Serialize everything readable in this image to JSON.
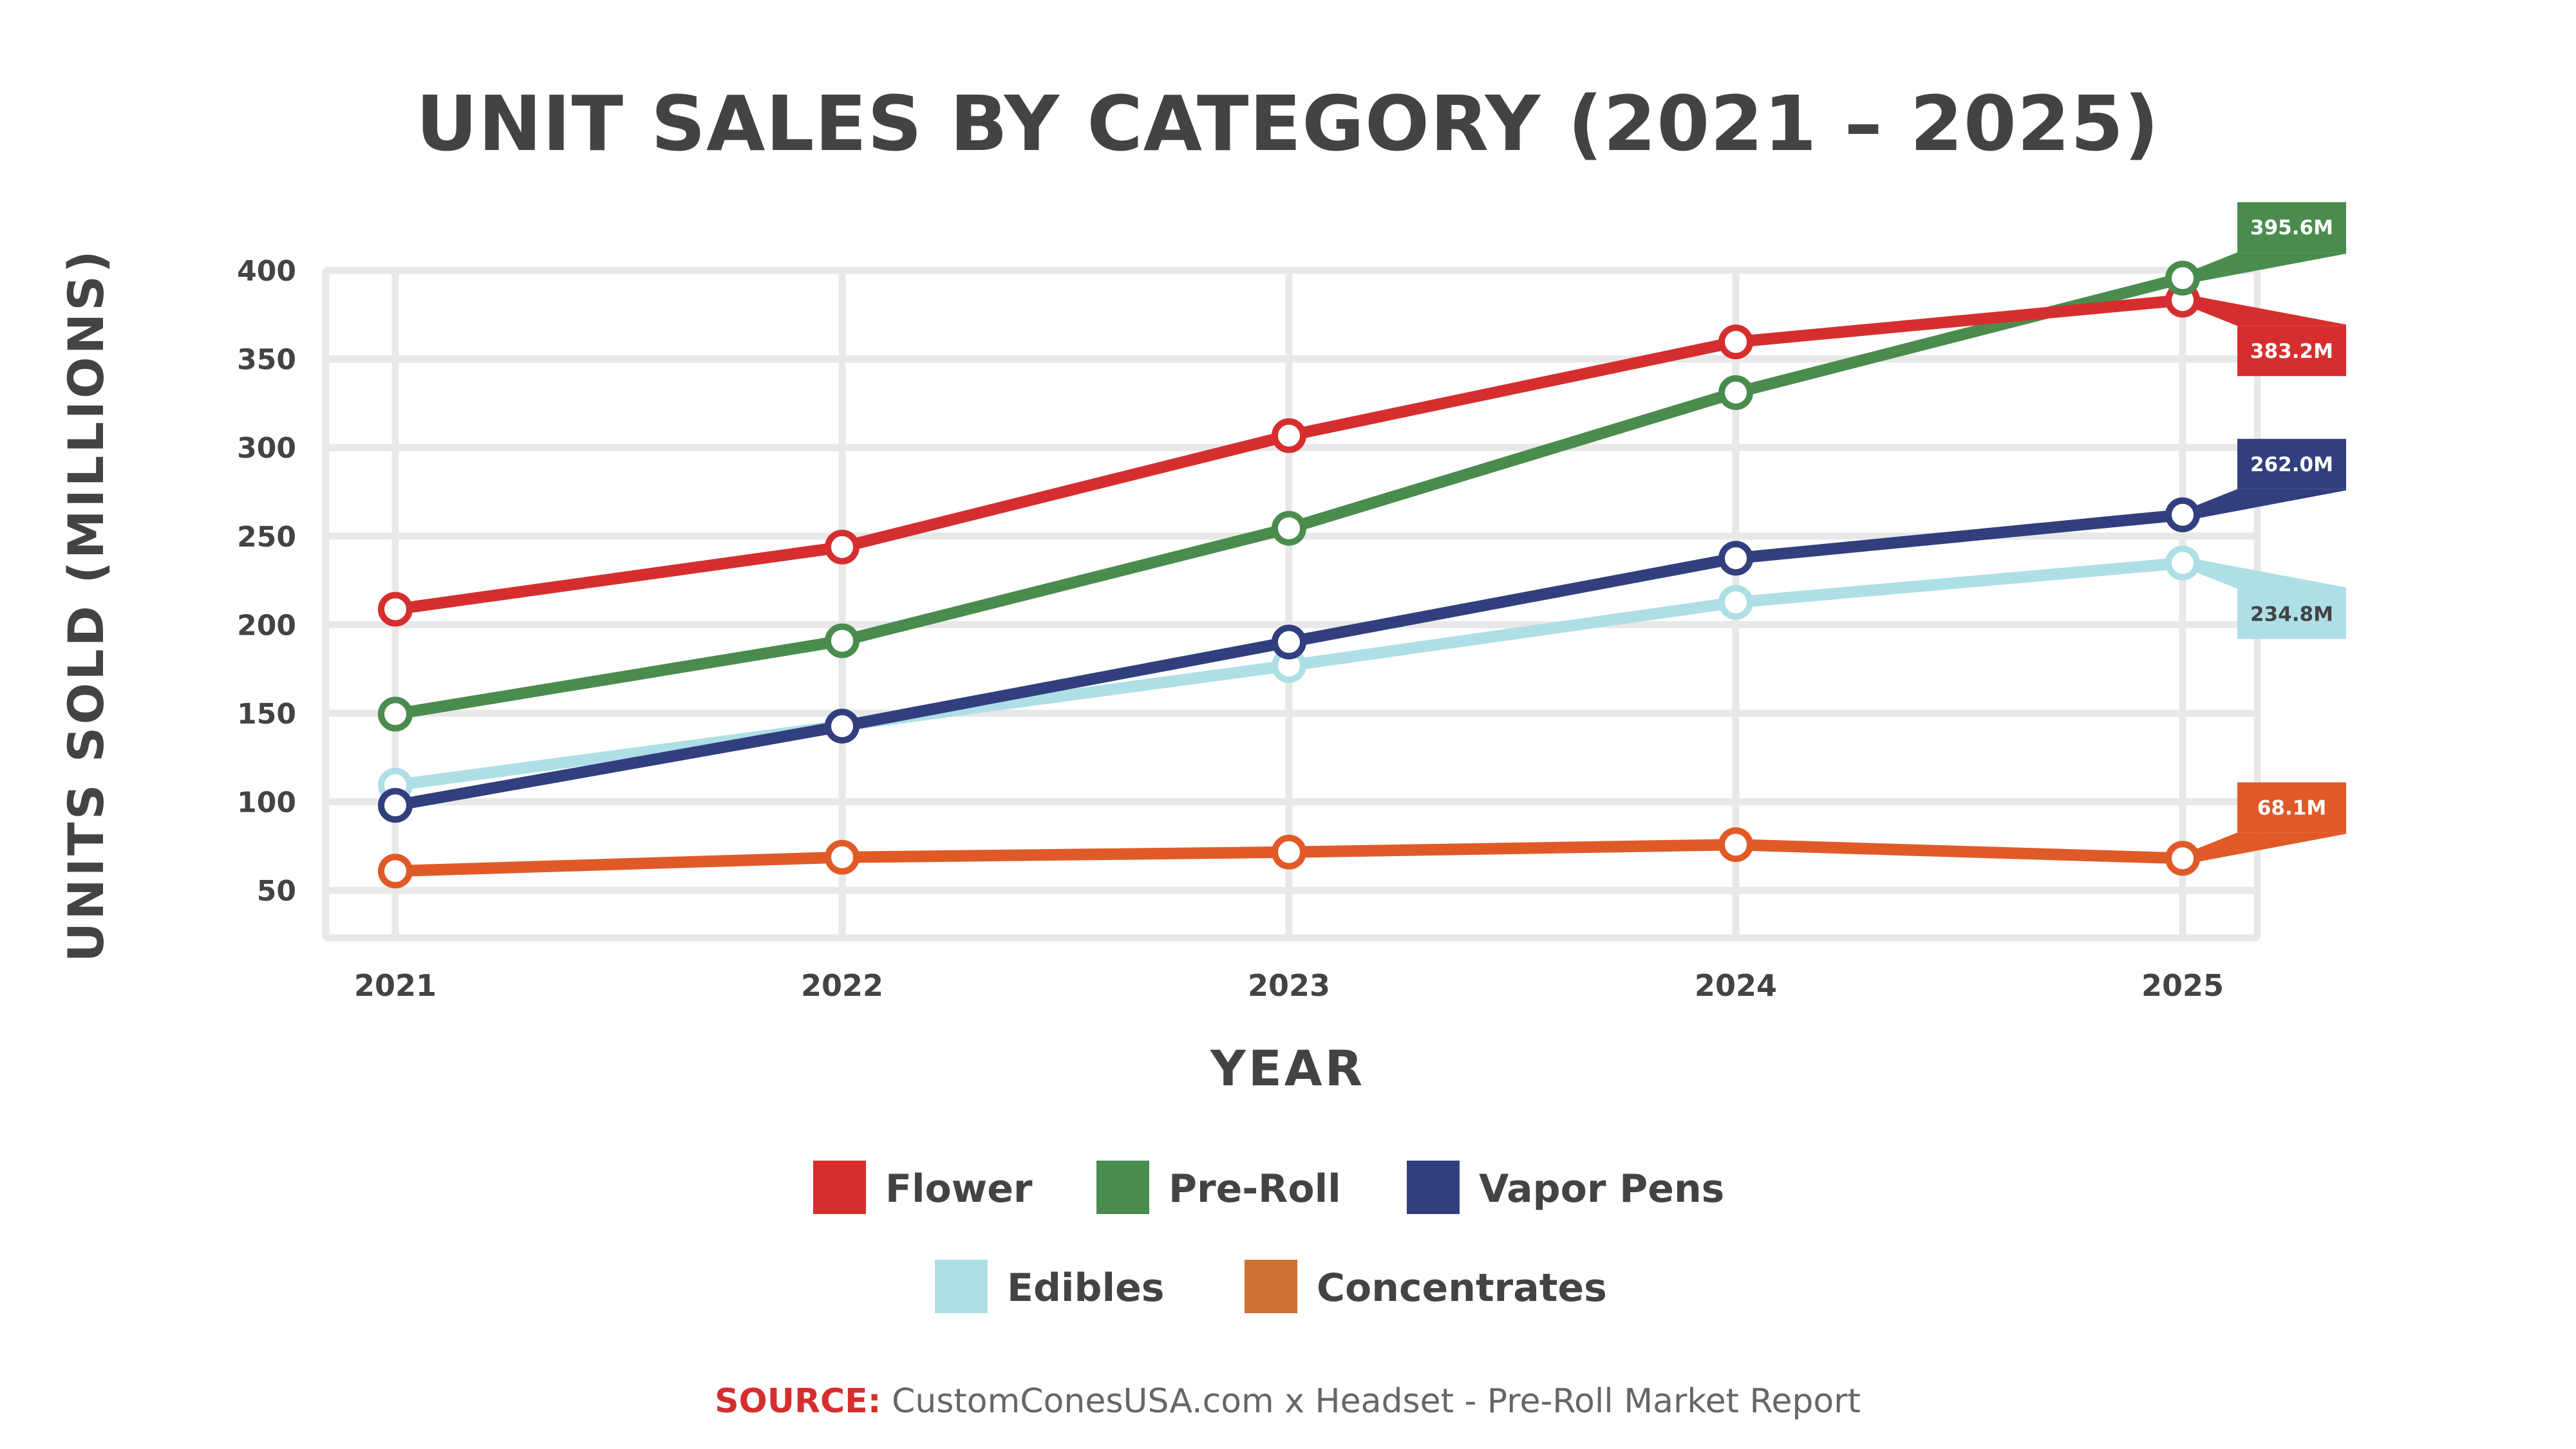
{
  "chart_data": {
    "type": "line",
    "title": "UNIT SALES BY CATEGORY (2021 – 2025)",
    "xlabel": "YEAR",
    "ylabel": "UNITS SOLD (MILLIONS)",
    "x": [
      "2021",
      "2022",
      "2023",
      "2024",
      "2025"
    ],
    "yticks": [
      50,
      100,
      150,
      200,
      250,
      300,
      350,
      400
    ],
    "ylim": [
      39,
      400
    ],
    "grid": true,
    "legend_position": "bottom-center",
    "series": [
      {
        "name": "Flower",
        "color": "#D62E2E",
        "legend_color": "#D62E2E",
        "label_text_color": "#FFFFFF",
        "values": [
          208.7,
          243.8,
          306.7,
          359.6,
          383.2
        ],
        "end_label": "383.2M",
        "label_side": "below"
      },
      {
        "name": "Pre-Roll",
        "color": "#4A8C4D",
        "legend_color": "#4A8C4D",
        "label_text_color": "#FFFFFF",
        "values": [
          149.5,
          190.9,
          254.4,
          331.0,
          395.6
        ],
        "end_label": "395.6M",
        "label_side": "above"
      },
      {
        "name": "Vapor Pens",
        "color": "#313F7E",
        "legend_color": "#313F7E",
        "label_text_color": "#FFFFFF",
        "values": [
          98.0,
          142.7,
          190.2,
          237.5,
          262.0
        ],
        "end_label": "262.0M",
        "label_side": "above"
      },
      {
        "name": "Edibles",
        "color": "#AEDFE6",
        "legend_color": "#AEDFE6",
        "label_text_color": "#434345",
        "values": [
          109.4,
          143.0,
          176.9,
          212.6,
          234.8
        ],
        "end_label": "234.8M",
        "label_side": "below"
      },
      {
        "name": "Concentrates",
        "color": "#E05A28",
        "legend_color": "#CF7034",
        "label_text_color": "#FFFFFF",
        "values": [
          60.9,
          68.7,
          71.6,
          75.8,
          68.1
        ],
        "end_label": "68.1M",
        "label_side": "above"
      }
    ],
    "draw_order": [
      "Edibles",
      "Concentrates",
      "Vapor Pens",
      "Pre-Roll",
      "Flower"
    ],
    "legend_rows": [
      [
        "Flower",
        "Pre-Roll",
        "Vapor Pens"
      ],
      [
        "Edibles",
        "Concentrates"
      ]
    ]
  },
  "source": {
    "prefix": "SOURCE:",
    "text": " CustomConesUSA.com x Headset - Pre-Roll Market Report"
  },
  "colors": {
    "text": "#434345",
    "grid": "#E8E8E8",
    "source_accent": "#D62E2E"
  }
}
